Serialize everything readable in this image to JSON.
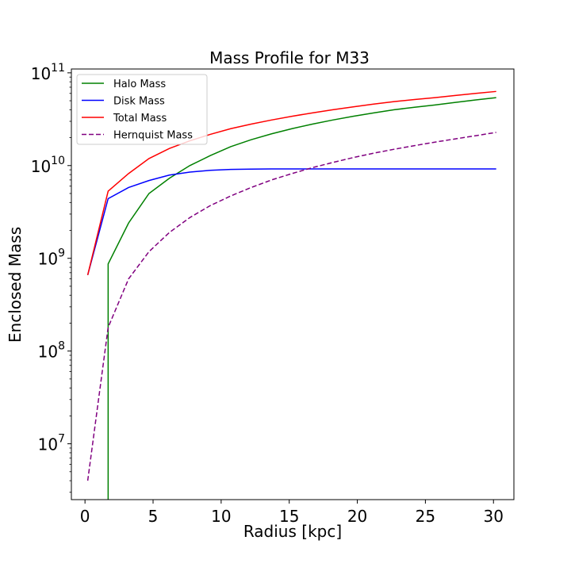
{
  "chart_data": {
    "type": "line",
    "title": "Mass Profile for M33",
    "xlabel": "Radius [kpc]",
    "ylabel": "Enclosed Mass",
    "yscale": "log",
    "xlim": [
      -1,
      31.5
    ],
    "ylim": [
      2500000.0,
      110000000000.0
    ],
    "xticks": [
      0,
      5,
      10,
      15,
      20,
      25,
      30
    ],
    "xtick_labels": [
      "0",
      "5",
      "10",
      "15",
      "20",
      "25",
      "30"
    ],
    "yticks": [
      {
        "value": 10000000.0,
        "base": "10",
        "exp": "7"
      },
      {
        "value": 100000000.0,
        "base": "10",
        "exp": "8"
      },
      {
        "value": 1000000000.0,
        "base": "10",
        "exp": "9"
      },
      {
        "value": 10000000000.0,
        "base": "10",
        "exp": "10"
      },
      {
        "value": 100000000000.0,
        "base": "10",
        "exp": "11"
      }
    ],
    "grid": false,
    "legend_position": "top-left",
    "series": [
      {
        "name": "Halo Mass",
        "color": "#008000",
        "dash": "solid",
        "points": [
          [
            1.7,
            1000000.0
          ],
          [
            1.7,
            870000000.0
          ],
          [
            3.2,
            2400000000.0
          ],
          [
            4.7,
            5000000000.0
          ],
          [
            6.2,
            7300000000.0
          ],
          [
            7.7,
            10000000000.0
          ],
          [
            9.2,
            12800000000.0
          ],
          [
            10.7,
            16000000000.0
          ],
          [
            12.2,
            19000000000.0
          ],
          [
            13.7,
            22000000000.0
          ],
          [
            15.2,
            25000000000.0
          ],
          [
            16.7,
            28000000000.0
          ],
          [
            18.2,
            31000000000.0
          ],
          [
            19.7,
            34000000000.0
          ],
          [
            21.2,
            37000000000.0
          ],
          [
            22.7,
            40000000000.0
          ],
          [
            24.2,
            42500000000.0
          ],
          [
            25.7,
            45000000000.0
          ],
          [
            27.2,
            48000000000.0
          ],
          [
            28.7,
            51000000000.0
          ],
          [
            30.2,
            54000000000.0
          ]
        ]
      },
      {
        "name": "Disk Mass",
        "color": "#0000ff",
        "dash": "solid",
        "points": [
          [
            0.2,
            660000000.0
          ],
          [
            1.7,
            4400000000.0
          ],
          [
            3.2,
            5800000000.0
          ],
          [
            4.7,
            6900000000.0
          ],
          [
            6.2,
            7900000000.0
          ],
          [
            7.7,
            8500000000.0
          ],
          [
            9.2,
            8900000000.0
          ],
          [
            10.7,
            9100000000.0
          ],
          [
            12.2,
            9150000000.0
          ],
          [
            13.7,
            9200000000.0
          ],
          [
            15.2,
            9200000000.0
          ],
          [
            16.7,
            9200000000.0
          ],
          [
            18.2,
            9200000000.0
          ],
          [
            19.7,
            9200000000.0
          ],
          [
            21.2,
            9200000000.0
          ],
          [
            22.7,
            9200000000.0
          ],
          [
            24.2,
            9200000000.0
          ],
          [
            25.7,
            9200000000.0
          ],
          [
            27.2,
            9200000000.0
          ],
          [
            28.7,
            9200000000.0
          ],
          [
            30.2,
            9200000000.0
          ]
        ]
      },
      {
        "name": "Total Mass",
        "color": "#ff0000",
        "dash": "solid",
        "points": [
          [
            0.2,
            660000000.0
          ],
          [
            1.7,
            5300000000.0
          ],
          [
            3.2,
            8200000000.0
          ],
          [
            4.7,
            11900000000.0
          ],
          [
            6.2,
            15300000000.0
          ],
          [
            7.7,
            18500000000.0
          ],
          [
            9.2,
            21700000000.0
          ],
          [
            10.7,
            25000000000.0
          ],
          [
            12.2,
            28000000000.0
          ],
          [
            13.7,
            31000000000.0
          ],
          [
            15.2,
            34000000000.0
          ],
          [
            16.7,
            37000000000.0
          ],
          [
            18.2,
            40000000000.0
          ],
          [
            19.7,
            43000000000.0
          ],
          [
            21.2,
            46000000000.0
          ],
          [
            22.7,
            49000000000.0
          ],
          [
            24.2,
            51500000000.0
          ],
          [
            25.7,
            54000000000.0
          ],
          [
            27.2,
            57000000000.0
          ],
          [
            28.7,
            60000000000.0
          ],
          [
            30.2,
            63000000000.0
          ]
        ]
      },
      {
        "name": "Hernquist Mass",
        "color": "#800080",
        "dash": "dashed",
        "points": [
          [
            0.2,
            4000000.0
          ],
          [
            1.7,
            180000000.0
          ],
          [
            3.2,
            600000000.0
          ],
          [
            4.7,
            1180000000.0
          ],
          [
            6.2,
            1900000000.0
          ],
          [
            7.7,
            2750000000.0
          ],
          [
            9.2,
            3700000000.0
          ],
          [
            10.7,
            4700000000.0
          ],
          [
            12.2,
            5800000000.0
          ],
          [
            13.7,
            7000000000.0
          ],
          [
            15.2,
            8200000000.0
          ],
          [
            16.7,
            9500000000.0
          ],
          [
            18.2,
            10800000000.0
          ],
          [
            19.7,
            12200000000.0
          ],
          [
            21.2,
            13600000000.0
          ],
          [
            22.7,
            15000000000.0
          ],
          [
            24.2,
            16400000000.0
          ],
          [
            25.7,
            17900000000.0
          ],
          [
            27.2,
            19400000000.0
          ],
          [
            28.7,
            21000000000.0
          ],
          [
            30.2,
            22800000000.0
          ]
        ]
      }
    ]
  }
}
